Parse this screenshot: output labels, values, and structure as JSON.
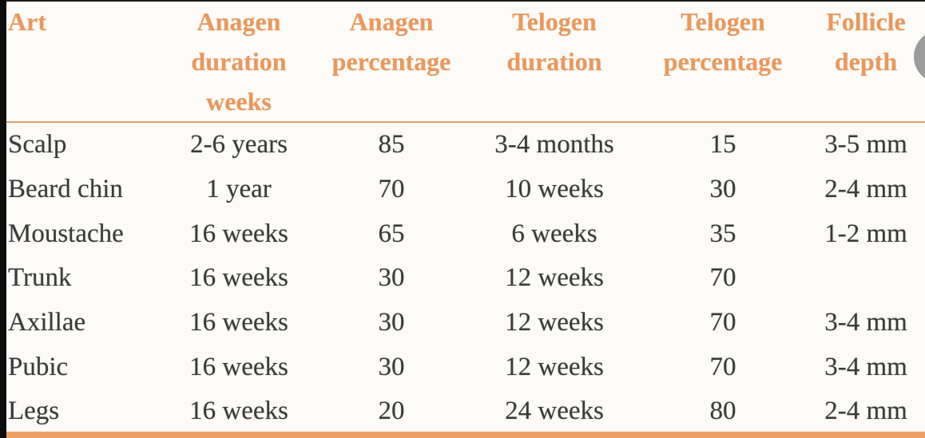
{
  "chart_data": {
    "type": "table",
    "title": "Hair follicle anagen/telogen characteristics by body site",
    "columns": [
      {
        "id": "site",
        "label": "Art",
        "lines": [
          "Art"
        ],
        "align": "left"
      },
      {
        "id": "anagen-duration",
        "label": "Anagen duration weeks",
        "lines": [
          "Anagen",
          "duration",
          "weeks"
        ],
        "align": "center"
      },
      {
        "id": "anagen-percentage",
        "label": "Anagen percentage",
        "lines": [
          "Anagen",
          "percentage"
        ],
        "align": "center"
      },
      {
        "id": "telogen-duration",
        "label": "Telogen duration",
        "lines": [
          "Telogen",
          "duration"
        ],
        "align": "center"
      },
      {
        "id": "telogen-percentage",
        "label": "Telogen percentage",
        "lines": [
          "Telogen",
          "percentage"
        ],
        "align": "center"
      },
      {
        "id": "follicle-depth",
        "label": "Follicle depth",
        "lines": [
          "Follicle",
          "depth"
        ],
        "align": "center"
      }
    ],
    "rows": [
      [
        "Scalp",
        "2-6 years",
        "85",
        "3-4 months",
        "15",
        "3-5 mm"
      ],
      [
        "Beard chin",
        "1 year",
        "70",
        "10 weeks",
        "30",
        "2-4 mm"
      ],
      [
        "Moustache",
        "16 weeks",
        "65",
        "6 weeks",
        "35",
        "1-2 mm"
      ],
      [
        "Trunk",
        "16 weeks",
        "30",
        "12 weeks",
        "70",
        ""
      ],
      [
        "Axillae",
        "16 weeks",
        "30",
        "12 weeks",
        "70",
        "3-4 mm"
      ],
      [
        "Pubic",
        "16 weeks",
        "30",
        "12 weeks",
        "70",
        "3-4 mm"
      ],
      [
        "Legs",
        "16 weeks",
        "20",
        "24 weeks",
        "80",
        "2-4 mm"
      ]
    ]
  },
  "colors": {
    "background": "#fcfbf8",
    "header_text": "#e8995f",
    "header_rule": "#e9a26d",
    "body_text": "#3a3a3a",
    "top_edge_line": "#1e1e1e",
    "left_edge_bar": "#0c0c0c",
    "bottom_bar": "#f0a168",
    "partial_circle": "#9b9b9b"
  }
}
